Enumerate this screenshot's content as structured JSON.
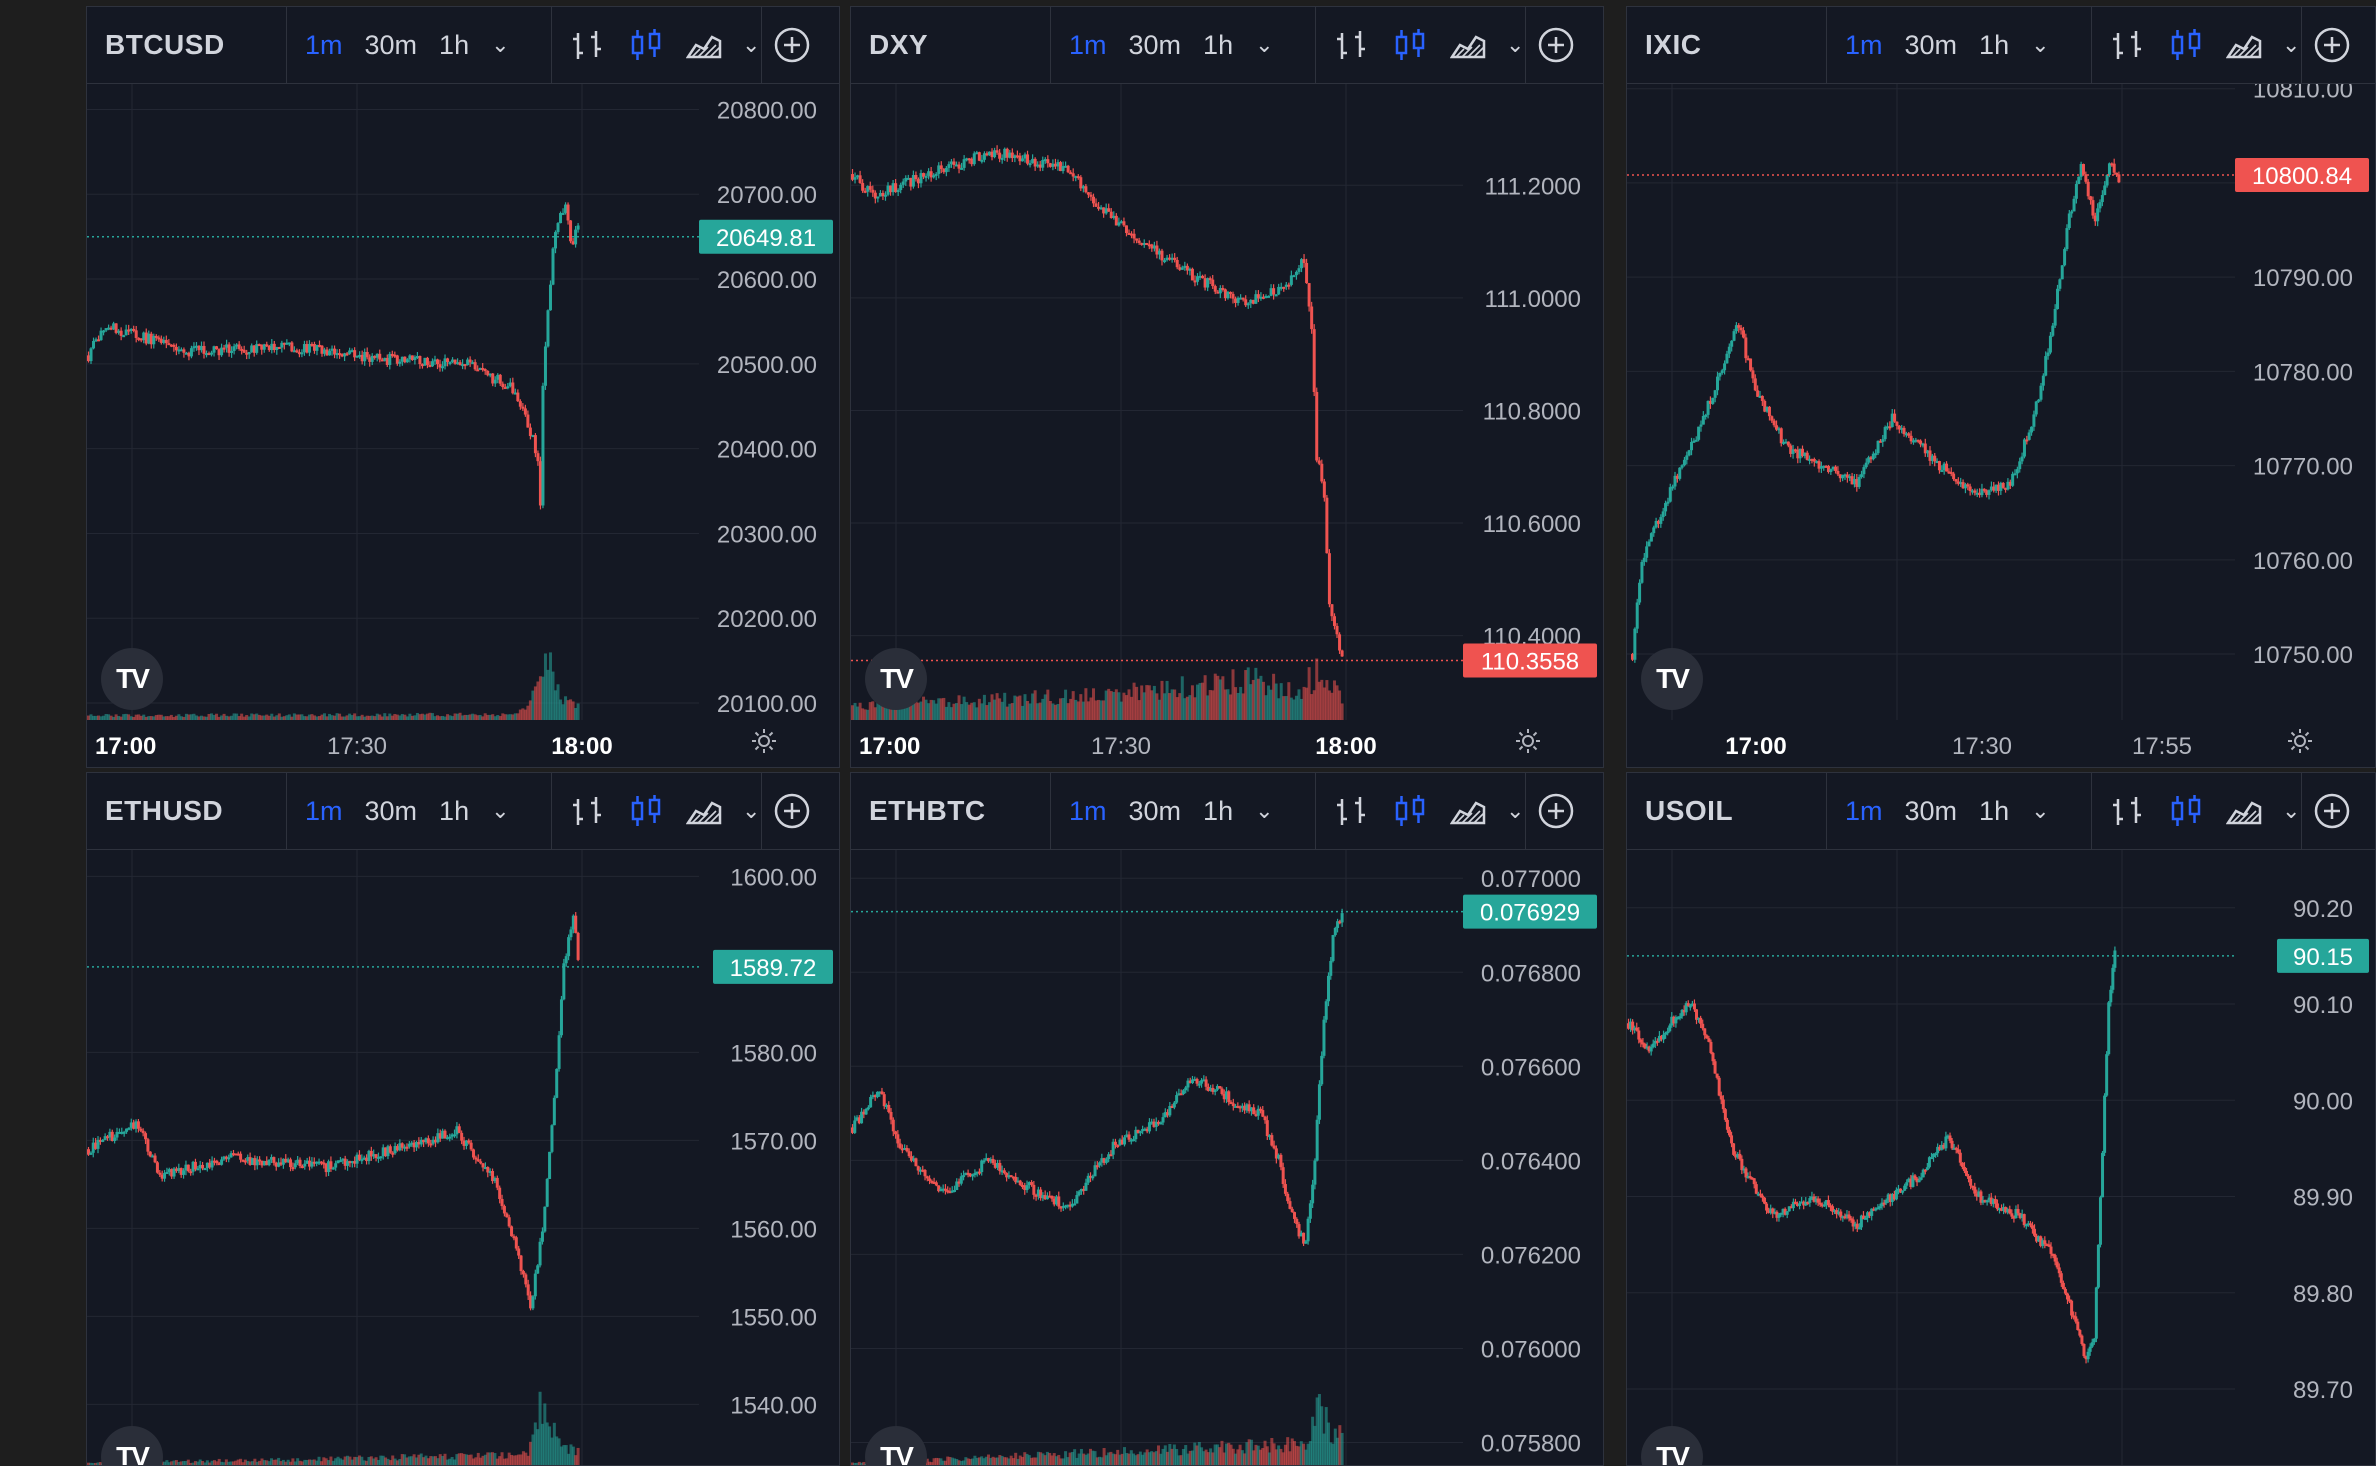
{
  "colors": {
    "up": "#26a69a",
    "down": "#ef5350",
    "accent": "#2962ff",
    "text": "#d1d4dc",
    "axisText": "#b2b5be",
    "grid": "#232733",
    "bg": "#141823"
  },
  "toolbar": {
    "intervals": [
      "1m",
      "30m",
      "1h"
    ],
    "active_interval": "1m",
    "style_icons": [
      "bar-chart-icon",
      "candlestick-icon",
      "area-chart-icon"
    ],
    "add_icon": "plus-circle-icon"
  },
  "panels": [
    {
      "symbol": "BTCUSD",
      "price_label": "20649.81",
      "price": 20649.81,
      "price_color": "up",
      "y_ticks": [
        "20800.00",
        "20700.00",
        "20600.00",
        "20500.00",
        "20400.00",
        "20300.00",
        "20200.00",
        "20100.00"
      ],
      "y_range": [
        20080,
        20830
      ],
      "x_ticks": [
        "17:00",
        "17:30",
        "18:00"
      ],
      "x_bold": [
        "17:00",
        "18:00"
      ],
      "series": {
        "start": 20510,
        "path": [
          [
            0,
            20510
          ],
          [
            6,
            20545
          ],
          [
            40,
            20515
          ],
          [
            80,
            20520
          ],
          [
            120,
            20505
          ],
          [
            150,
            20500
          ],
          [
            170,
            20470
          ],
          [
            176,
            20420
          ],
          [
            179,
            20390
          ],
          [
            180,
            20330
          ],
          [
            181,
            20480
          ],
          [
            184,
            20600
          ],
          [
            186,
            20660
          ],
          [
            190,
            20690
          ],
          [
            192,
            20640
          ],
          [
            195,
            20660
          ]
        ],
        "vol": [
          [
            0,
            0.08
          ],
          [
            170,
            0.1
          ],
          [
            176,
            0.3
          ],
          [
            180,
            1.0
          ],
          [
            184,
            0.9
          ],
          [
            188,
            0.4
          ],
          [
            195,
            0.3
          ]
        ]
      }
    },
    {
      "symbol": "DXY",
      "price_label": "110.3558",
      "price": 110.3558,
      "price_color": "down",
      "y_ticks": [
        "111.2000",
        "111.0000",
        "110.8000",
        "110.6000",
        "110.4000"
      ],
      "y_range": [
        110.25,
        111.38
      ],
      "x_ticks": [
        "17:00",
        "17:30",
        "18:00"
      ],
      "x_bold": [
        "17:00",
        "18:00"
      ],
      "series": {
        "start": 111.22,
        "path": [
          [
            0,
            111.22
          ],
          [
            8,
            111.18
          ],
          [
            30,
            111.22
          ],
          [
            55,
            111.26
          ],
          [
            85,
            111.23
          ],
          [
            100,
            111.15
          ],
          [
            130,
            111.05
          ],
          [
            155,
            110.99
          ],
          [
            170,
            111.02
          ],
          [
            178,
            111.07
          ],
          [
            181,
            110.95
          ],
          [
            183,
            110.72
          ],
          [
            186,
            110.65
          ],
          [
            188,
            110.45
          ],
          [
            191,
            110.4
          ],
          [
            193,
            110.36
          ]
        ],
        "vol": [
          [
            0,
            0.25
          ],
          [
            100,
            0.45
          ],
          [
            130,
            0.6
          ],
          [
            160,
            0.75
          ],
          [
            175,
            0.5
          ],
          [
            185,
            0.9
          ],
          [
            193,
            0.4
          ]
        ]
      }
    },
    {
      "symbol": "IXIC",
      "price_label": "10800.84",
      "price": 10800.84,
      "price_color": "down",
      "y_ticks": [
        "10810.00",
        "10800.00",
        "10790.00",
        "10780.00",
        "10770.00",
        "10760.00",
        "10750.00"
      ],
      "y_range": [
        10743,
        10810.5
      ],
      "x_ticks": [
        "17:00",
        "17:30",
        "17:55"
      ],
      "x_bold": [
        "17:00"
      ],
      "series": {
        "start": 10750,
        "path": [
          [
            0,
            10750
          ],
          [
            4,
            10760
          ],
          [
            12,
            10765
          ],
          [
            30,
            10775
          ],
          [
            45,
            10785
          ],
          [
            52,
            10778
          ],
          [
            65,
            10772
          ],
          [
            80,
            10770
          ],
          [
            95,
            10768
          ],
          [
            110,
            10775
          ],
          [
            130,
            10770
          ],
          [
            145,
            10767
          ],
          [
            160,
            10768
          ],
          [
            170,
            10775
          ],
          [
            178,
            10785
          ],
          [
            184,
            10795
          ],
          [
            190,
            10802
          ],
          [
            196,
            10796
          ],
          [
            202,
            10802
          ],
          [
            206,
            10800
          ]
        ],
        "vol": []
      }
    },
    {
      "symbol": "ETHUSD",
      "price_label": "1589.72",
      "price": 1589.72,
      "price_color": "up",
      "y_ticks": [
        "1600.00",
        "1580.00",
        "1570.00",
        "1560.00",
        "1550.00",
        "1540.00"
      ],
      "y_range": [
        1533,
        1603
      ],
      "x_ticks": [],
      "x_bold": [],
      "series": {
        "start": 1569,
        "path": [
          [
            0,
            1569
          ],
          [
            20,
            1572
          ],
          [
            30,
            1566
          ],
          [
            60,
            1568
          ],
          [
            100,
            1567
          ],
          [
            130,
            1569
          ],
          [
            155,
            1571
          ],
          [
            170,
            1566
          ],
          [
            180,
            1558
          ],
          [
            186,
            1551
          ],
          [
            189,
            1556
          ],
          [
            192,
            1562
          ],
          [
            196,
            1575
          ],
          [
            200,
            1590
          ],
          [
            204,
            1596
          ],
          [
            206,
            1590
          ]
        ],
        "vol": [
          [
            0,
            0.05
          ],
          [
            185,
            0.2
          ],
          [
            190,
            1.0
          ],
          [
            195,
            0.7
          ],
          [
            200,
            0.3
          ]
        ]
      }
    },
    {
      "symbol": "ETHBTC",
      "price_label": "0.076929",
      "price": 0.076929,
      "price_color": "up",
      "y_ticks": [
        "0.077000",
        "0.076800",
        "0.076600",
        "0.076400",
        "0.076200",
        "0.076000",
        "0.075800"
      ],
      "y_range": [
        0.07575,
        0.07706
      ],
      "x_ticks": [],
      "x_bold": [],
      "series": {
        "start": 0.07647,
        "path": [
          [
            0,
            0.07647
          ],
          [
            12,
            0.07655
          ],
          [
            22,
            0.07642
          ],
          [
            40,
            0.07633
          ],
          [
            60,
            0.0764
          ],
          [
            75,
            0.07635
          ],
          [
            95,
            0.0763
          ],
          [
            115,
            0.07643
          ],
          [
            135,
            0.07648
          ],
          [
            150,
            0.07658
          ],
          [
            170,
            0.07652
          ],
          [
            180,
            0.0765
          ],
          [
            188,
            0.0764
          ],
          [
            194,
            0.07628
          ],
          [
            200,
            0.07622
          ],
          [
            204,
            0.0764
          ],
          [
            208,
            0.0767
          ],
          [
            212,
            0.07688
          ],
          [
            216,
            0.07693
          ]
        ],
        "vol": [
          [
            0,
            0.05
          ],
          [
            200,
            0.4
          ],
          [
            205,
            1.0
          ],
          [
            212,
            0.6
          ]
        ]
      }
    },
    {
      "symbol": "USOIL",
      "price_label": "90.15",
      "price": 90.15,
      "price_color": "up",
      "y_ticks": [
        "90.20",
        "90.10",
        "90.00",
        "89.90",
        "89.80",
        "89.70"
      ],
      "y_range": [
        89.62,
        90.26
      ],
      "x_ticks": [],
      "x_bold": [],
      "series": {
        "start": 90.08,
        "path": [
          [
            0,
            90.08
          ],
          [
            10,
            90.05
          ],
          [
            20,
            90.08
          ],
          [
            30,
            90.1
          ],
          [
            40,
            90.05
          ],
          [
            50,
            89.95
          ],
          [
            70,
            89.88
          ],
          [
            90,
            89.9
          ],
          [
            110,
            89.87
          ],
          [
            140,
            89.92
          ],
          [
            155,
            89.96
          ],
          [
            170,
            89.9
          ],
          [
            190,
            89.88
          ],
          [
            205,
            89.84
          ],
          [
            215,
            89.78
          ],
          [
            222,
            89.73
          ],
          [
            226,
            89.75
          ],
          [
            230,
            89.95
          ],
          [
            233,
            90.1
          ],
          [
            236,
            90.15
          ]
        ],
        "vol": []
      }
    }
  ]
}
